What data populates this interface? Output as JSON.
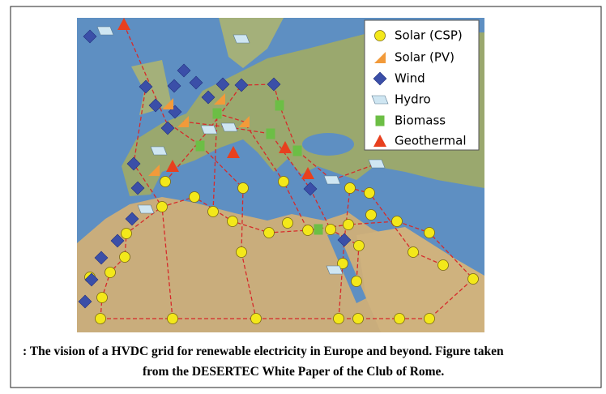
{
  "legend": {
    "items": [
      {
        "label": "Solar (CSP)"
      },
      {
        "label": "Solar (PV)"
      },
      {
        "label": "Wind"
      },
      {
        "label": "Hydro"
      },
      {
        "label": "Biomass"
      },
      {
        "label": "Geothermal"
      }
    ]
  },
  "caption": {
    "lines": [
      ": The vision of a HVDC grid for renewable electricity in Europe and beyond. Figure taken",
      "from the DESERTEC White Paper of the Club of Rome."
    ]
  }
}
